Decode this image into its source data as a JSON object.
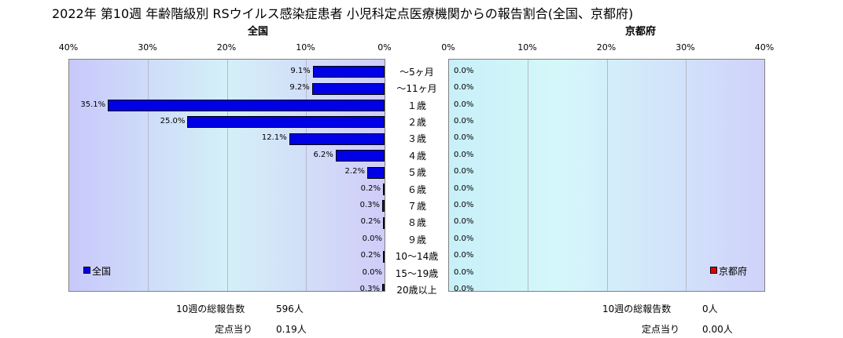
{
  "title": "2022年 第10週 年齢階級別 RSウイルス感染症患者 小児科定点医療機関からの報告割合(全国、京都府)",
  "colors": {
    "national_bar": "#0000e6",
    "kyoto_bar": "#e00000"
  },
  "chart_data": [
    {
      "type": "bar",
      "orientation": "horizontal",
      "title": "全国",
      "x_direction": "reversed",
      "xlim": [
        0,
        40
      ],
      "x_ticks": [
        "40%",
        "30%",
        "20%",
        "10%",
        "0%"
      ],
      "grid": true,
      "legend": "bottom-left",
      "categories": [
        "～5ヶ月",
        "～11ヶ月",
        "１歳",
        "２歳",
        "３歳",
        "４歳",
        "５歳",
        "６歳",
        "７歳",
        "８歳",
        "９歳",
        "10～14歳",
        "15～19歳",
        "20歳以上"
      ],
      "series": [
        {
          "name": "全国",
          "values": [
            9.1,
            9.2,
            35.1,
            25.0,
            12.1,
            6.2,
            2.2,
            0.2,
            0.3,
            0.2,
            0.0,
            0.2,
            0.0,
            0.3
          ],
          "labels": [
            "9.1%",
            "9.2%",
            "35.1%",
            "25.0%",
            "12.1%",
            "6.2%",
            "2.2%",
            "0.2%",
            "0.3%",
            "0.2%",
            "0.0%",
            "0.2%",
            "0.0%",
            "0.3%"
          ]
        }
      ]
    },
    {
      "type": "bar",
      "orientation": "horizontal",
      "title": "京都府",
      "xlim": [
        0,
        40
      ],
      "x_ticks": [
        "0%",
        "10%",
        "20%",
        "30%",
        "40%"
      ],
      "grid": true,
      "legend": "bottom-right",
      "categories": [
        "～5ヶ月",
        "～11ヶ月",
        "１歳",
        "２歳",
        "３歳",
        "４歳",
        "５歳",
        "６歳",
        "７歳",
        "８歳",
        "９歳",
        "10～14歳",
        "15～19歳",
        "20歳以上"
      ],
      "series": [
        {
          "name": "京都府",
          "values": [
            0,
            0,
            0,
            0,
            0,
            0,
            0,
            0,
            0,
            0,
            0,
            0,
            0,
            0
          ],
          "labels": [
            "0.0%",
            "0.0%",
            "0.0%",
            "0.0%",
            "0.0%",
            "0.0%",
            "0.0%",
            "0.0%",
            "0.0%",
            "0.0%",
            "0.0%",
            "0.0%",
            "0.0%",
            "0.0%"
          ]
        }
      ]
    }
  ],
  "summary": {
    "national": {
      "total_label": "10週の総報告数",
      "total_value": "596人",
      "per_label": "定点当り",
      "per_value": "0.19人"
    },
    "kyoto": {
      "total_label": "10週の総報告数",
      "total_value": "0人",
      "per_label": "定点当り",
      "per_value": "0.00人"
    }
  }
}
